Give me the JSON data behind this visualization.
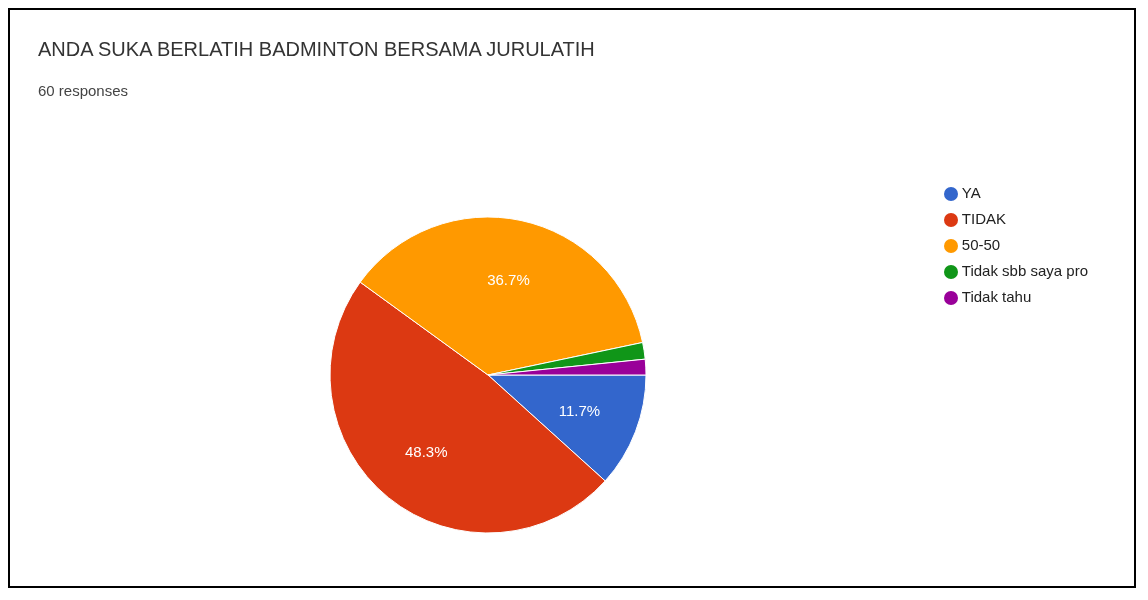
{
  "chart_data": {
    "type": "pie",
    "title": "ANDA SUKA BERLATIH BADMINTON BERSAMA JURULATIH",
    "subtitle": "60 responses",
    "categories": [
      "YA",
      "TIDAK",
      "50-50",
      "Tidak sbb saya pro",
      "Tidak tahu"
    ],
    "values": [
      11.7,
      48.3,
      36.7,
      1.7,
      1.6
    ],
    "colors": [
      "#3366cc",
      "#dc3912",
      "#ff9900",
      "#109618",
      "#990099"
    ],
    "value_labels": [
      "11.7%",
      "48.3%",
      "36.7%",
      null,
      null
    ],
    "legend": "top right"
  }
}
